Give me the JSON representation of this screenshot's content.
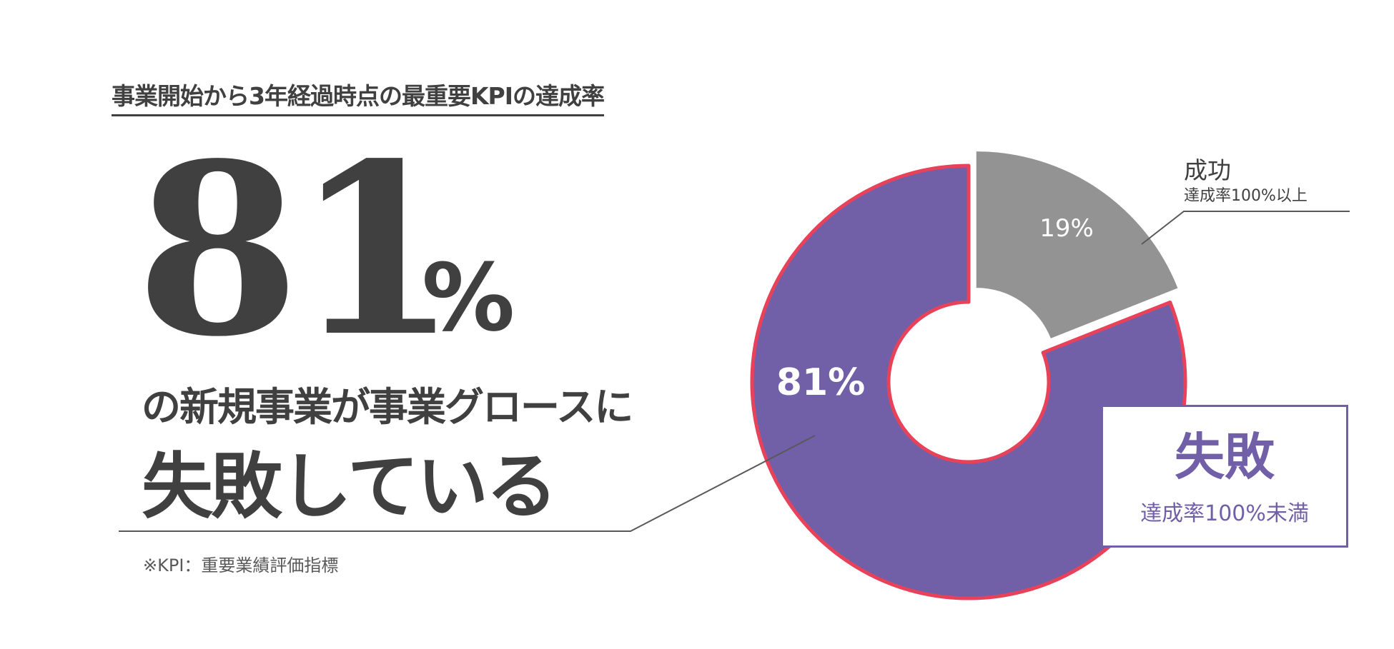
{
  "heading": "事業開始から3年経過時点の最重要KPIの達成率",
  "headline": {
    "big_number": "81",
    "percent_sign": "%",
    "line1": "の新規事業が事業グロースに",
    "line2": "失敗している"
  },
  "footnote": "※KPI：重要業績評価指標",
  "chart_data": {
    "type": "pie",
    "style": "donut",
    "slices": [
      {
        "label": "成功",
        "sublabel": "達成率100%以上",
        "value": 19,
        "value_label": "19%",
        "color": "#939393"
      },
      {
        "label": "失敗",
        "sublabel": "達成率100%未満",
        "value": 81,
        "value_label": "81%",
        "color": "#7160a8",
        "outline": "#e8415a"
      }
    ]
  }
}
